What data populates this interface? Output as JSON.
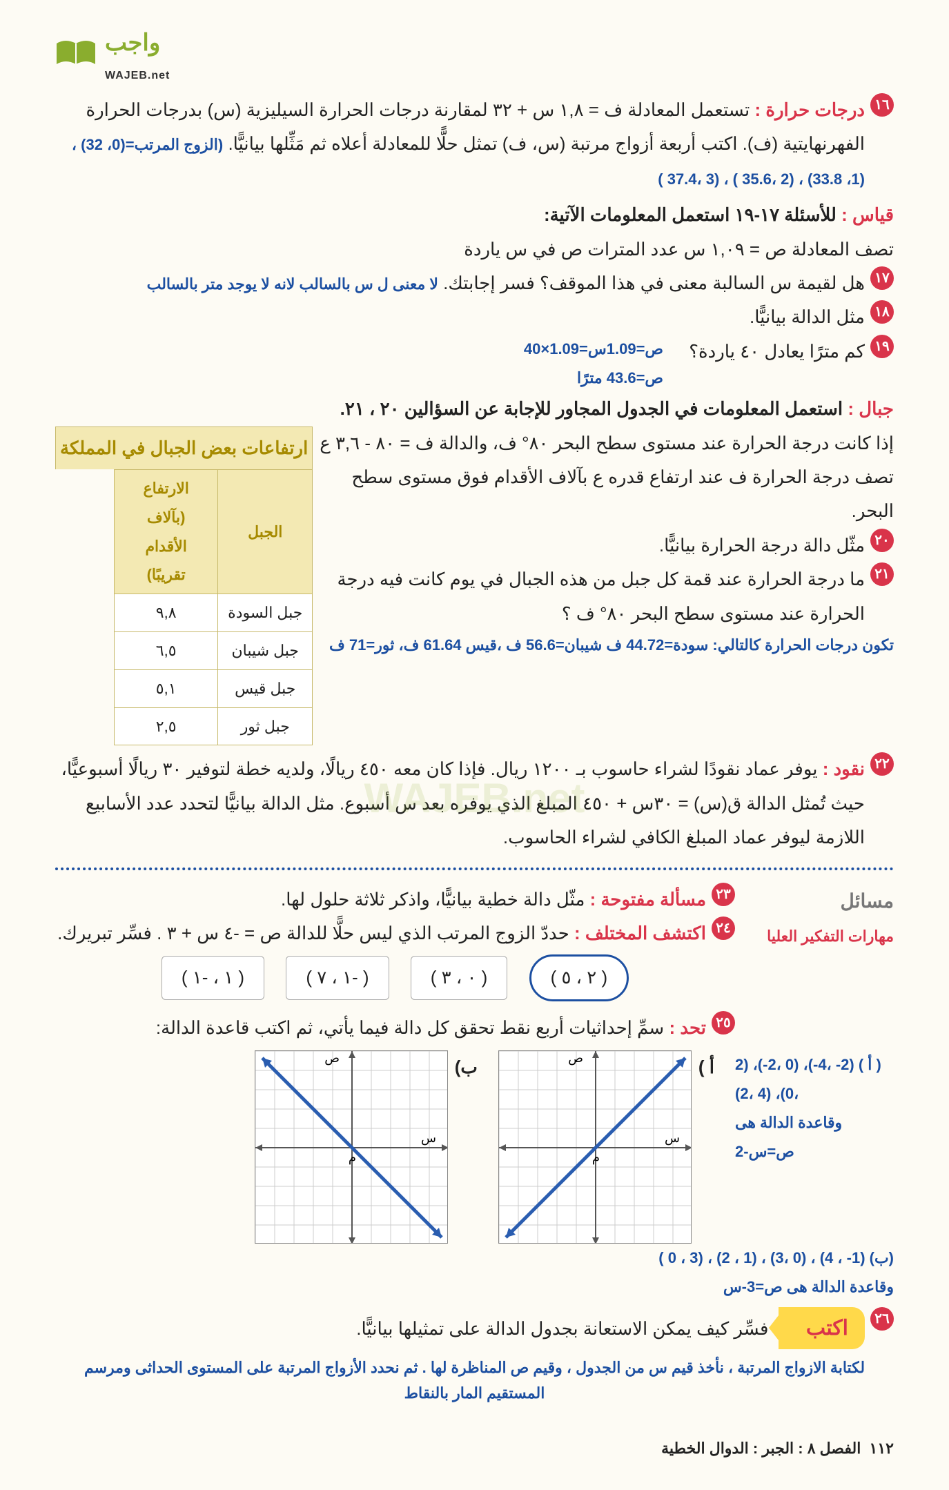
{
  "logo": {
    "ar": "واجب",
    "en": "WAJEB.net"
  },
  "q16": {
    "num": "١٦",
    "title": "درجات حرارة : ",
    "body": "تستعمل المعادلة ف = ١,٨ س + ٣٢ لمقارنة درجات الحرارة السيليزية (س) بدرجات الحرارة الفهرنهايتية (ف). اكتب أربعة أزواج مرتبة (س، ف) تمثل حلًّا للمعادلة أعلاه ثم مَثِّلها بيانيًّا.",
    "answer": "(الزوج المرتب=(0، 32) ،(1، 33.8) ، (2 ،35.6 ) ، (3 ،37.4 )"
  },
  "qiyas": {
    "title": "قياس : ",
    "body": "للأسئلة ١٧-١٩ استعمل المعلومات الآتية:",
    "eq": "تصف المعادلة ص = ١,٠٩ س عدد المترات ص في س ياردة"
  },
  "q17": {
    "num": "١٧",
    "body": "هل لقيمة س السالبة معنى في هذا الموقف؟ فسر إجابتك.",
    "answer": "لا معنى ل س بالسالب لانه لا يوجد متر بالسالب"
  },
  "q18": {
    "num": "١٨",
    "body": "مثل الدالة بيانيًّا."
  },
  "q19": {
    "num": "١٩",
    "body": "كم مترًا يعادل ٤٠ ياردة؟",
    "answer_l1": "ص=1.09س=1.09×40",
    "answer_l2": "ص=43.6 مترًا"
  },
  "jibal": {
    "title": "جبال : ",
    "body": "استعمل المعلومات في الجدول المجاور للإجابة عن السؤالين ٢٠ ، ٢١.",
    "para": "إذا كانت درجة الحرارة عند مستوى سطح البحر ٨٠° ف، والدالة ف = ٨٠ - ٣,٦ ع تصف درجة الحرارة ف عند ارتفاع قدره ع بآلاف الأقدام فوق مستوى سطح البحر."
  },
  "table": {
    "title": "ارتفاعات بعض الجبال في المملكة",
    "col1": "الجبل",
    "col2": "الارتفاع (بآلاف الأقدام تقريبًا)",
    "rows": [
      [
        "جبل السودة",
        "٩,٨"
      ],
      [
        "جبل شيبان",
        "٦,٥"
      ],
      [
        "جبل قيس",
        "٥,١"
      ],
      [
        "جبل ثور",
        "٢,٥"
      ]
    ]
  },
  "q20": {
    "num": "٢٠",
    "body": "مثّل دالة درجة الحرارة بيانيًّا."
  },
  "q21": {
    "num": "٢١",
    "body": "ما درجة الحرارة عند قمة كل جبل من هذه الجبال في يوم كانت فيه درجة الحرارة عند مستوى سطح البحر ٨٠° ف ؟",
    "answer": "تكون درجات الحرارة كالتالي: سودة=44.72 ف شيبان=56.6 ف ،قيس 61.64 ف، ثور=71 ف"
  },
  "q22": {
    "num": "٢٢",
    "title": "نقود : ",
    "body": "يوفر عماد نقودًا لشراء حاسوب بـ ١٢٠٠ ريال. فإذا كان معه ٤٥٠ ريالًا، ولديه خطة لتوفير ٣٠ ريالًا أسبوعيًّا، حيث تُمثل الدالة ق(س) = ٣٠س + ٤٥٠ المبلغ الذي يوفره بعد س أسبوع. مثل الدالة بيانيًّا لتحدد عدد الأسابيع اللازمة ليوفر عماد المبلغ الكافي لشراء الحاسوب."
  },
  "masail": {
    "heading": "مسائل",
    "sub": "مهارات التفكير العليا"
  },
  "q23": {
    "num": "٢٣",
    "title": "مسألة مفتوحة : ",
    "body": "مثّل دالة خطية بيانيًّا، واذكر ثلاثة حلول لها."
  },
  "q24": {
    "num": "٢٤",
    "title": "اكتشف المختلف : ",
    "body": "حددّ الزوج المرتب الذي ليس حلًّا للدالة ص = -٤ س + ٣ . فسِّر تبريرك.",
    "pairs": [
      "( ٢ ، ٥ )",
      "( ٠ ، ٣ )",
      "( -١ ، ٧ )",
      "( ١ ، -١ )"
    ]
  },
  "q25": {
    "num": "٢٥",
    "title": "تحد : ",
    "body": "سمِّ إحداثيات أربع نقط تحقق كل دالة فيما يأتي، ثم اكتب قاعدة الدالة:",
    "lblA": "أ )",
    "lblB": "ب)",
    "ansA_l1": "( أ ) (2- ،4-)، (0 ،2-)، (2 ،0)، (4 ،2)",
    "ansA_l2": "وقاعدة الدالة هى ص=س-2",
    "ansB_l1": "(ب) (1- ، 4) ، (0 ،3) ، (1 ، 2) ، (3 ، 0 )",
    "ansB_l2": "وقاعدة الدالة هى ص=3-س"
  },
  "q26": {
    "num": "٢٦",
    "aktb": "اكتب",
    "body": "فسِّر كيف يمكن الاستعانة بجدول الدالة على تمثيلها بيانيًّا.",
    "footer": "لكتابة الازواج المرتبة ، نأخذ قيم س من الجدول ، وقيم ص المناظرة لها . ثم نحدد الأزواج المرتبة على المستوى الحداثى ومرسم المستقيم المار بالنقاط"
  },
  "footer": {
    "page": "١١٢",
    "chapter": "الفصل ٨ : الجبر : الدوال الخطية"
  },
  "graph": {
    "size": 280,
    "grid": 10,
    "axis_color": "#555",
    "grid_color": "#ccc",
    "lineA_color": "#2a5db0",
    "lineB_color": "#2a5db0",
    "label_x": "س",
    "label_y": "ص",
    "label_o": "م"
  },
  "watermark": "WAJEB.net"
}
